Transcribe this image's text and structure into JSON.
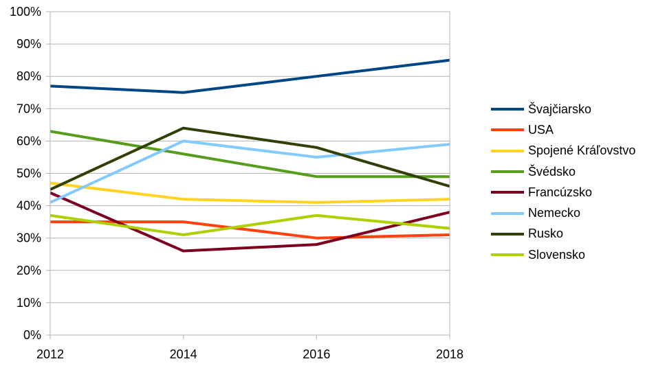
{
  "chart_data": {
    "type": "line",
    "x": [
      2012,
      2014,
      2016,
      2018
    ],
    "x_tick_labels": [
      "2012",
      "2014",
      "2016",
      "2018"
    ],
    "y_tick_labels": [
      "0%",
      "10%",
      "20%",
      "30%",
      "40%",
      "50%",
      "60%",
      "70%",
      "80%",
      "90%",
      "100%"
    ],
    "ylim": [
      0,
      100
    ],
    "y_unit": "%",
    "grid": "horizontal",
    "legend_position": "right",
    "series": [
      {
        "name": "Švajčiarsko",
        "color": "#004586",
        "values": [
          77,
          75,
          80,
          85
        ]
      },
      {
        "name": "USA",
        "color": "#ff420e",
        "values": [
          35,
          35,
          30,
          31
        ]
      },
      {
        "name": "Spojené Kráľovstvo",
        "color": "#ffd320",
        "values": [
          47,
          42,
          41,
          42
        ]
      },
      {
        "name": "Švédsko",
        "color": "#579d1c",
        "values": [
          63,
          56,
          49,
          49
        ]
      },
      {
        "name": "Francúzsko",
        "color": "#7e0021",
        "values": [
          44,
          26,
          28,
          38
        ]
      },
      {
        "name": "Nemecko",
        "color": "#83caff",
        "values": [
          41,
          60,
          55,
          59
        ]
      },
      {
        "name": "Rusko",
        "color": "#314004",
        "values": [
          45,
          64,
          58,
          46
        ]
      },
      {
        "name": "Slovensko",
        "color": "#aecf00",
        "values": [
          37,
          31,
          37,
          33
        ]
      }
    ]
  }
}
